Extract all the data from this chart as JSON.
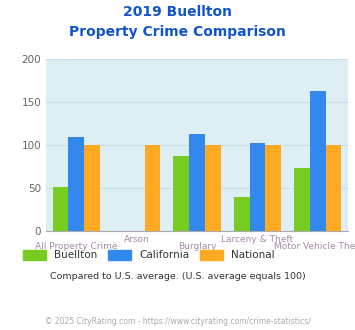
{
  "title_line1": "2019 Buellton",
  "title_line2": "Property Crime Comparison",
  "categories": [
    "All Property Crime",
    "Arson",
    "Burglary",
    "Larceny & Theft",
    "Motor Vehicle Theft"
  ],
  "buellton": [
    51,
    0,
    87,
    40,
    73
  ],
  "california": [
    110,
    0,
    113,
    103,
    163
  ],
  "national": [
    100,
    100,
    100,
    100,
    100
  ],
  "color_buellton": "#77cc22",
  "color_california": "#3388ee",
  "color_national": "#ffaa22",
  "background_color": "#deeef5",
  "ylim": [
    0,
    200
  ],
  "yticks": [
    0,
    50,
    100,
    150,
    200
  ],
  "subtitle": "Compared to U.S. average. (U.S. average equals 100)",
  "footer": "© 2025 CityRating.com - https://www.cityrating.com/crime-statistics/",
  "legend_labels": [
    "Buellton",
    "California",
    "National"
  ],
  "title_color": "#1155cc",
  "label_color": "#aa88aa",
  "subtitle_color": "#333333",
  "footer_color": "#aaaaaa",
  "grid_color": "#c8dde8"
}
